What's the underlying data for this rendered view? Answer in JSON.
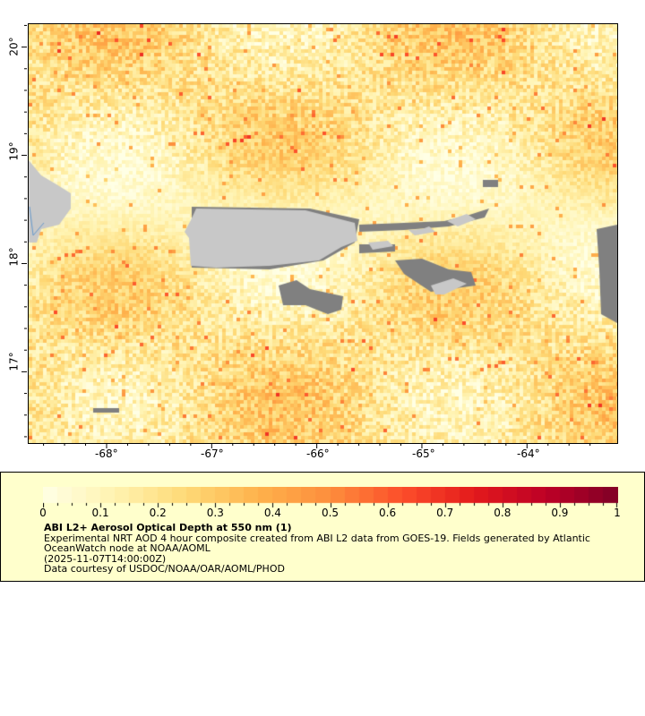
{
  "map": {
    "variable": "Aerosol Optical Depth",
    "lon_range": [
      -68.75,
      -63.15
    ],
    "lat_range": [
      16.35,
      20.22
    ],
    "lon_ticks": [
      "-68°",
      "-67°",
      "-66°",
      "-65°",
      "-64°"
    ],
    "lat_ticks": [
      "20°",
      "19°",
      "18°",
      "17°"
    ],
    "colors": {
      "land": "#c8c8c8",
      "no_data": "#808080",
      "coast": "#6699cc"
    }
  },
  "colorbar": {
    "min": 0,
    "max": 1,
    "tick_labels": [
      "0",
      "0.1",
      "0.2",
      "0.3",
      "0.4",
      "0.5",
      "0.6",
      "0.7",
      "0.8",
      "0.9",
      "1"
    ],
    "colormap": [
      "#ffffe5",
      "#fff3b0",
      "#fed976",
      "#feb24c",
      "#fd8d3c",
      "#fc4e2a",
      "#e31a1c",
      "#bd0026",
      "#800026"
    ]
  },
  "legend": {
    "title": "ABI L2+ Aerosol Optical Depth at 550 nm (1)",
    "description": "Experimental NRT AOD 4 hour composite created from ABI L2 data from GOES-19. Fields generated by Atlantic OceanWatch node at NOAA/AOML",
    "time": "(2025-11-07T14:00:00Z)",
    "credit": "Data courtesy of USDOC/NOAA/OAR/AOML/PHOD"
  }
}
